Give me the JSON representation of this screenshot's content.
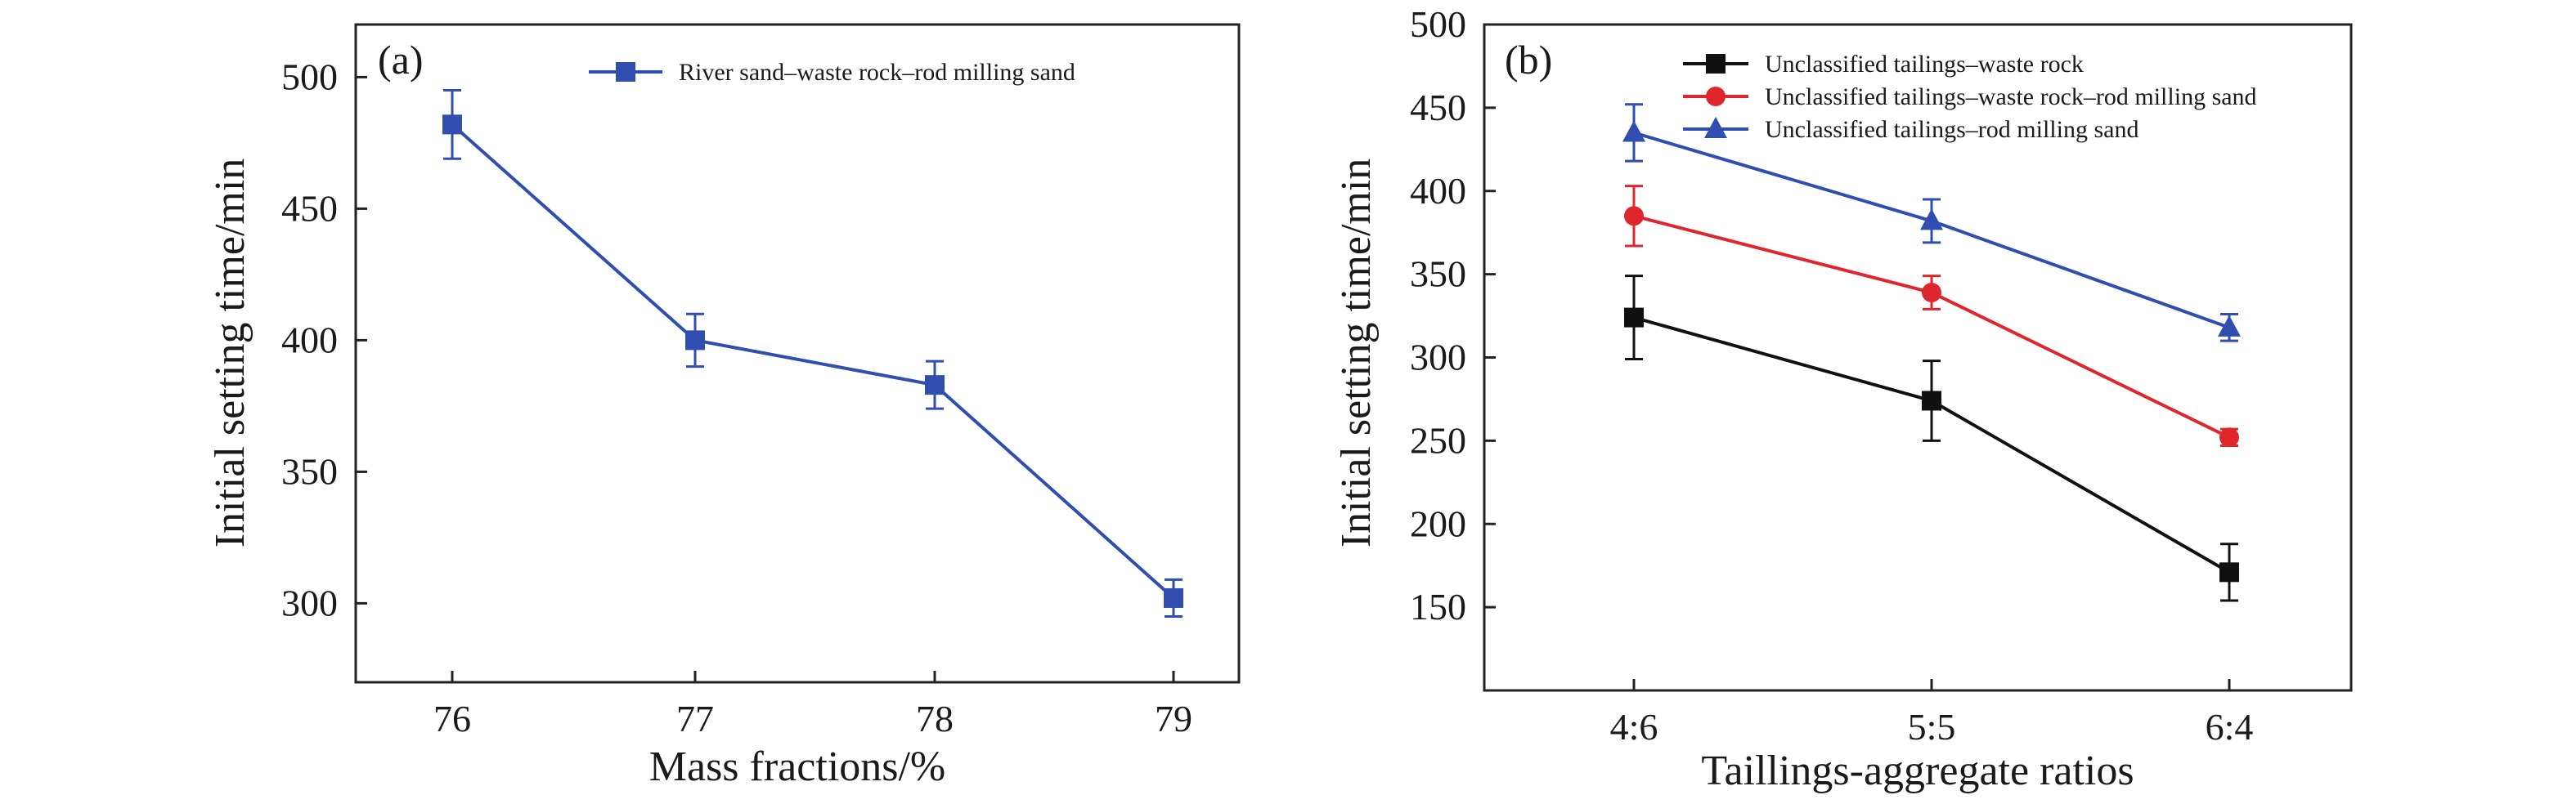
{
  "chart_data": [
    {
      "type": "line",
      "panel_label": "(a)",
      "xlabel": "Mass fractions/%",
      "ylabel": "Initial setting time/min",
      "categories": [
        "76",
        "77",
        "78",
        "79"
      ],
      "ylim": [
        270,
        520
      ],
      "yticks": [
        "300",
        "350",
        "400",
        "450",
        "500"
      ],
      "legend_position": "top-right",
      "grid": false,
      "series": [
        {
          "name": "River sand–waste rock–rod milling sand",
          "color": "#2f4eb0",
          "marker": "square",
          "values": [
            482,
            400,
            383,
            302
          ],
          "errors": [
            13,
            10,
            9,
            7
          ]
        }
      ]
    },
    {
      "type": "line",
      "panel_label": "(b)",
      "xlabel": "Taillings-aggregate ratios",
      "ylabel": "Initial setting time/min",
      "categories": [
        "4:6",
        "5:5",
        "6:4"
      ],
      "ylim": [
        100,
        500
      ],
      "yticks": [
        "150",
        "200",
        "250",
        "300",
        "350",
        "400",
        "450",
        "500"
      ],
      "legend_position": "top-left",
      "grid": false,
      "series": [
        {
          "name": "Unclassified tailings–waste rock",
          "color": "#111111",
          "marker": "square",
          "values": [
            324,
            274,
            171
          ],
          "errors": [
            25,
            24,
            17
          ]
        },
        {
          "name": "Unclassified tailings–waste rock–rod milling sand",
          "color": "#e0262d",
          "marker": "circle",
          "values": [
            385,
            339,
            252
          ],
          "errors": [
            18,
            10,
            5
          ]
        },
        {
          "name": "Unclassified tailings–rod milling sand",
          "color": "#2f4eb0",
          "marker": "triangle",
          "values": [
            435,
            382,
            318
          ],
          "errors": [
            17,
            13,
            8
          ]
        }
      ]
    }
  ]
}
